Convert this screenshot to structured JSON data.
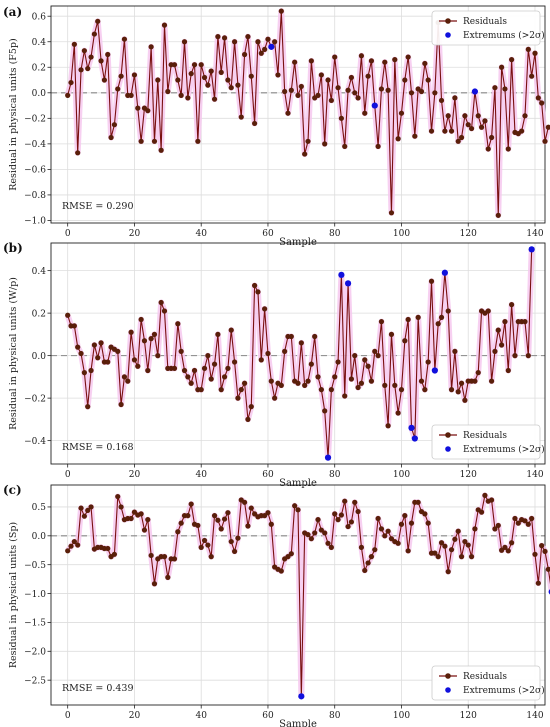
{
  "colors": {
    "line": "#7a1010",
    "marker": "#5a1f0a",
    "extremum": "#1010dd",
    "halo": "#f6c8ee",
    "zero": "#888888",
    "grid": "#dddddd"
  },
  "legend_labels": {
    "residuals": "Residuals",
    "extremums": "Extremums (>2σ)"
  },
  "chart_data": [
    {
      "type": "line",
      "panel_label": "(a)",
      "ylabel": "Residual in physical units (F5p)",
      "xlabel": "Sample",
      "rmse_text": "RMSE = 0.290",
      "xlim": [
        -5,
        143
      ],
      "ylim": [
        -1.02,
        0.68
      ],
      "xticks": [
        0,
        20,
        40,
        60,
        80,
        100,
        120,
        140
      ],
      "yticks": [
        -1.0,
        -0.8,
        -0.6,
        -0.4,
        -0.2,
        0.0,
        0.2,
        0.4,
        0.6
      ],
      "ytick_labels": [
        "−1.0",
        "−0.8",
        "−0.6",
        "−0.4",
        "−0.2",
        "0.0",
        "0.2",
        "0.4",
        "0.6"
      ],
      "legend_position": "top-right",
      "values": [
        -0.02,
        0.08,
        0.38,
        -0.47,
        0.18,
        0.33,
        0.19,
        0.28,
        0.46,
        0.56,
        0.25,
        0.1,
        0.3,
        -0.35,
        -0.25,
        0.03,
        0.13,
        0.42,
        -0.02,
        -0.02,
        0.14,
        -0.12,
        -0.38,
        -0.12,
        -0.14,
        0.36,
        -0.38,
        0.1,
        -0.45,
        0.53,
        0.01,
        0.22,
        0.22,
        0.1,
        -0.02,
        0.4,
        -0.04,
        0.15,
        0.22,
        -0.38,
        0.22,
        0.12,
        0.06,
        0.17,
        -0.05,
        0.44,
        0.16,
        0.43,
        0.1,
        0.04,
        0.4,
        0.06,
        -0.19,
        0.3,
        0.44,
        0.13,
        -0.24,
        0.4,
        0.31,
        0.34,
        0.42,
        0.36,
        0.4,
        0.14,
        0.64,
        0.01,
        -0.16,
        0.02,
        0.24,
        -0.02,
        0.05,
        -0.48,
        -0.38,
        0.25,
        -0.04,
        -0.02,
        0.14,
        -0.4,
        0.1,
        -0.06,
        0.28,
        0.04,
        -0.2,
        -0.42,
        0.02,
        0.12,
        0.0,
        -0.04,
        0.29,
        -0.16,
        0.13,
        0.25,
        -0.1,
        -0.42,
        0.03,
        0.24,
        0.02,
        -0.94,
        0.26,
        -0.36,
        -0.16,
        0.1,
        0.28,
        0.0,
        -0.34,
        0.03,
        0.01,
        0.23,
        0.1,
        -0.3,
        0.0,
        0.55,
        -0.06,
        -0.3,
        -0.18,
        -0.3,
        -0.04,
        -0.38,
        -0.35,
        -0.18,
        -0.25,
        -0.28,
        0.01,
        -0.18,
        -0.27,
        -0.22,
        -0.44,
        -0.35,
        0.04,
        -0.96,
        0.2,
        0.03,
        -0.44,
        0.26,
        -0.31,
        -0.32,
        -0.3,
        -0.18,
        0.34,
        0.13,
        0.31,
        -0.04,
        -0.08,
        -0.38,
        -0.27
      ],
      "extremum_indices": [
        61,
        92,
        122
      ]
    },
    {
      "type": "line",
      "panel_label": "(b)",
      "ylabel": "Residual in physical units (W/p)",
      "xlabel": "Sample",
      "rmse_text": "RMSE = 0.168",
      "xlim": [
        -5,
        143
      ],
      "ylim": [
        -0.51,
        0.53
      ],
      "xticks": [
        0,
        20,
        40,
        60,
        80,
        100,
        120,
        140
      ],
      "yticks": [
        -0.4,
        -0.2,
        0.0,
        0.2,
        0.4
      ],
      "ytick_labels": [
        "−0.4",
        "−0.2",
        "0.0",
        "0.2",
        "0.4"
      ],
      "legend_position": "bottom-right",
      "values": [
        0.19,
        0.14,
        0.14,
        0.04,
        0.01,
        -0.08,
        -0.24,
        -0.07,
        0.05,
        -0.01,
        0.06,
        -0.03,
        -0.03,
        0.04,
        0.03,
        0.02,
        -0.23,
        -0.1,
        -0.12,
        0.11,
        -0.02,
        -0.05,
        0.17,
        0.07,
        -0.07,
        0.08,
        0.1,
        0.0,
        0.25,
        0.21,
        -0.06,
        -0.06,
        -0.06,
        0.15,
        0.02,
        -0.07,
        -0.1,
        -0.13,
        -0.07,
        -0.16,
        -0.16,
        -0.06,
        0.0,
        -0.11,
        -0.04,
        0.1,
        -0.16,
        -0.1,
        -0.06,
        0.12,
        -0.03,
        -0.2,
        -0.16,
        -0.13,
        -0.3,
        -0.24,
        0.33,
        0.3,
        -0.02,
        0.22,
        0.01,
        -0.12,
        -0.2,
        -0.13,
        -0.14,
        0.02,
        0.09,
        0.09,
        -0.12,
        -0.13,
        0.06,
        -0.14,
        -0.12,
        -0.04,
        0.09,
        -0.1,
        -0.16,
        -0.26,
        -0.48,
        -0.16,
        -0.1,
        -0.03,
        0.38,
        -0.19,
        0.34,
        -0.11,
        0.0,
        -0.15,
        -0.13,
        -0.02,
        -0.05,
        -0.12,
        0.02,
        0.0,
        0.16,
        -0.14,
        -0.33,
        0.1,
        -0.14,
        -0.27,
        -0.16,
        0.07,
        0.17,
        -0.34,
        -0.39,
        0.18,
        -0.12,
        -0.16,
        -0.03,
        0.35,
        -0.07,
        0.15,
        0.18,
        0.39,
        0.21,
        -0.16,
        0.02,
        -0.17,
        -0.13,
        -0.21,
        -0.12,
        -0.12,
        -0.12,
        -0.08,
        0.21,
        0.2,
        0.21,
        -0.12,
        0.02,
        0.12,
        0.05,
        0.16,
        -0.07,
        0.24,
        0.0,
        0.16,
        0.16,
        0.16,
        0.0,
        0.5
      ],
      "extremum_indices": [
        78,
        82,
        84,
        103,
        104,
        110,
        113,
        139
      ]
    },
    {
      "type": "line",
      "panel_label": "(c)",
      "ylabel": "Residual in physical units (Sp)",
      "xlabel": "Sample",
      "rmse_text": "RMSE = 0.439",
      "xlim": [
        -5,
        143
      ],
      "ylim": [
        -2.93,
        0.88
      ],
      "xticks": [
        0,
        20,
        40,
        60,
        80,
        100,
        120,
        140
      ],
      "yticks": [
        -2.5,
        -2.0,
        -1.5,
        -1.0,
        -0.5,
        0.0,
        0.5
      ],
      "ytick_labels": [
        "−2.5",
        "−2.0",
        "−1.5",
        "−1.0",
        "−0.5",
        "0.0",
        "0.5"
      ],
      "legend_position": "bottom-right",
      "values": [
        -0.26,
        -0.18,
        -0.1,
        -0.16,
        0.48,
        0.34,
        0.44,
        0.5,
        -0.23,
        -0.2,
        -0.2,
        -0.22,
        -0.22,
        -0.36,
        -0.32,
        0.68,
        0.5,
        0.28,
        0.3,
        0.3,
        0.41,
        0.36,
        0.38,
        0.1,
        0.28,
        -0.34,
        -0.83,
        -0.4,
        -0.36,
        -0.36,
        -0.72,
        -0.4,
        -0.4,
        0.07,
        0.22,
        0.35,
        0.35,
        0.55,
        0.2,
        0.18,
        -0.2,
        -0.08,
        -0.16,
        -0.36,
        0.35,
        0.27,
        0.12,
        0.29,
        0.4,
        -0.1,
        -0.27,
        -0.04,
        0.62,
        0.58,
        0.17,
        0.48,
        0.38,
        0.33,
        0.35,
        0.35,
        0.4,
        0.2,
        -0.54,
        -0.58,
        -0.61,
        -0.4,
        -0.36,
        -0.31,
        0.52,
        0.45,
        -2.78,
        0.05,
        0.02,
        -0.05,
        0.05,
        0.28,
        0.1,
        0.05,
        -0.13,
        -0.2,
        0.38,
        0.28,
        0.36,
        0.6,
        0.16,
        0.24,
        0.58,
        0.42,
        -0.2,
        -0.6,
        -0.47,
        -0.36,
        -0.24,
        0.3,
        0.12,
        0.0,
        0.08,
        -0.05,
        -0.1,
        -0.13,
        0.2,
        0.35,
        -0.26,
        0.22,
        0.58,
        0.58,
        0.42,
        0.38,
        0.22,
        -0.3,
        -0.3,
        -0.36,
        -0.12,
        -0.18,
        -0.62,
        -0.24,
        -0.06,
        0.08,
        -0.36,
        -0.1,
        -0.16,
        -0.36,
        0.12,
        0.45,
        0.41,
        0.7,
        0.6,
        0.62,
        0.12,
        0.18,
        -0.25,
        -0.2,
        -0.26,
        -0.12,
        0.3,
        0.22,
        0.28,
        0.26,
        0.2,
        0.3,
        -0.32,
        -0.82,
        -0.17,
        -0.27,
        -0.58,
        -0.97
      ],
      "extremum_indices": [
        70,
        145
      ]
    }
  ]
}
